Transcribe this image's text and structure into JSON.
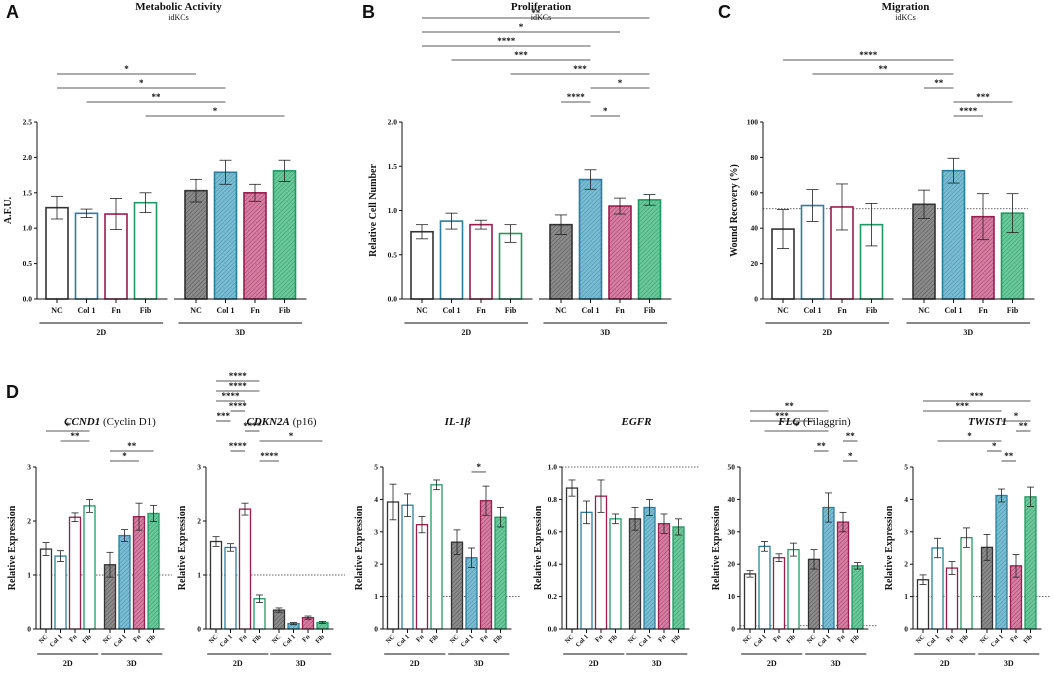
{
  "panel_letters": [
    "A",
    "B",
    "C",
    "D"
  ],
  "colors": {
    "nc": "#333333",
    "col1": "#2a7f9e",
    "fn": "#9a1d4f",
    "fib": "#1f9a63",
    "nc_fill": "#888888",
    "col1_fill": "#6fb3cc",
    "fn_fill": "#c9668f",
    "fib_fill": "#5fbf92"
  },
  "chart_data": [
    {
      "id": "A",
      "type": "bar",
      "title": "Metabolic Activity",
      "subtitle": "idKCs",
      "ylabel": "A.F.U.",
      "ylim": [
        0,
        2.5
      ],
      "yticks": [
        "0.0",
        "0.5",
        "1.0",
        "1.5",
        "2.0",
        "2.5"
      ],
      "categories": [
        "NC",
        "Col 1",
        "Fn",
        "Fib",
        "NC",
        "Col 1",
        "Fn",
        "Fib"
      ],
      "groups": [
        "2D",
        "3D"
      ],
      "values": [
        1.29,
        1.21,
        1.2,
        1.36,
        1.53,
        1.79,
        1.5,
        1.81
      ],
      "errors": [
        0.16,
        0.06,
        0.22,
        0.14,
        0.16,
        0.17,
        0.12,
        0.15
      ],
      "significance": [
        {
          "from": 0,
          "to": 4,
          "label": "*"
        },
        {
          "from": 0,
          "to": 5,
          "label": "*"
        },
        {
          "from": 1,
          "to": 5,
          "label": "**"
        },
        {
          "from": 3,
          "to": 7,
          "label": "*"
        }
      ]
    },
    {
      "id": "B",
      "type": "bar",
      "title": "Proliferation",
      "subtitle": "idKCs",
      "ylabel": "Relative Cell Number",
      "ylim": [
        0,
        2.0
      ],
      "yticks": [
        "0.0",
        "0.5",
        "1.0",
        "1.5",
        "2.0"
      ],
      "categories": [
        "NC",
        "Col 1",
        "Fn",
        "Fib",
        "NC",
        "Col 1",
        "Fn",
        "Fib"
      ],
      "groups": [
        "2D",
        "3D"
      ],
      "values": [
        0.76,
        0.88,
        0.84,
        0.74,
        0.84,
        1.35,
        1.05,
        1.12
      ],
      "errors": [
        0.08,
        0.09,
        0.05,
        0.1,
        0.11,
        0.11,
        0.09,
        0.06
      ],
      "significance": [
        {
          "from": 0,
          "to": 7,
          "label": "**"
        },
        {
          "from": 0,
          "to": 6,
          "label": "*"
        },
        {
          "from": 0,
          "to": 5,
          "label": "****"
        },
        {
          "from": 1,
          "to": 5,
          "label": "***"
        },
        {
          "from": 3,
          "to": 7,
          "label": "***"
        },
        {
          "from": 5,
          "to": 7,
          "label": "*"
        },
        {
          "from": 4,
          "to": 5,
          "label": "****"
        },
        {
          "from": 5,
          "to": 6,
          "label": "*"
        }
      ]
    },
    {
      "id": "C",
      "type": "bar",
      "title": "Migration",
      "subtitle": "idKCs",
      "ylabel": "Wound Recovery (%)",
      "ylim": [
        0,
        100
      ],
      "yticks": [
        "0",
        "20",
        "40",
        "60",
        "80",
        "100"
      ],
      "reference": 51,
      "categories": [
        "NC",
        "Col 1",
        "Fn",
        "Fib",
        "NC",
        "Col 1",
        "Fn",
        "Fib"
      ],
      "groups": [
        "2D",
        "3D"
      ],
      "values": [
        39.5,
        52.8,
        52.0,
        42.0,
        53.5,
        72.5,
        46.5,
        48.5
      ],
      "errors": [
        11,
        9,
        13,
        12,
        8,
        7,
        13,
        11
      ],
      "significance": [
        {
          "from": 0,
          "to": 5,
          "label": "****"
        },
        {
          "from": 1,
          "to": 5,
          "label": "**"
        },
        {
          "from": 4,
          "to": 5,
          "label": "**"
        },
        {
          "from": 5,
          "to": 7,
          "label": "***"
        },
        {
          "from": 5,
          "to": 6,
          "label": "****"
        }
      ]
    },
    {
      "id": "D1",
      "type": "bar",
      "gene": "CCND1",
      "gene_note": "(Cyclin D1)",
      "ylabel": "Relative Expression",
      "ylim": [
        0,
        3
      ],
      "yticks": [
        "0",
        "1",
        "2",
        "3"
      ],
      "reference": 1,
      "categories": [
        "NC",
        "Col 1",
        "Fn",
        "Fib",
        "NC",
        "Col 1",
        "Fn",
        "Fib"
      ],
      "groups": [
        "2D",
        "3D"
      ],
      "values": [
        1.48,
        1.35,
        2.07,
        2.28,
        1.19,
        1.73,
        2.08,
        2.14
      ],
      "errors": [
        0.12,
        0.1,
        0.08,
        0.12,
        0.23,
        0.11,
        0.25,
        0.15
      ],
      "significance": [
        {
          "from": 0,
          "to": 3,
          "label": "*"
        },
        {
          "from": 1,
          "to": 3,
          "label": "**"
        },
        {
          "from": 4,
          "to": 7,
          "label": "**"
        },
        {
          "from": 4,
          "to": 6,
          "label": "*"
        }
      ]
    },
    {
      "id": "D2",
      "type": "bar",
      "gene": "CDKN2A",
      "gene_note": "(p16)",
      "ylabel": "Relative Expression",
      "ylim": [
        0,
        3
      ],
      "yticks": [
        "0",
        "1",
        "2",
        "3"
      ],
      "reference": 1,
      "categories": [
        "NC",
        "Col 1",
        "Fn",
        "Fib",
        "NC",
        "Col 1",
        "Fn",
        "Fib"
      ],
      "groups": [
        "2D",
        "3D"
      ],
      "values": [
        1.62,
        1.51,
        2.22,
        0.56,
        0.35,
        0.1,
        0.21,
        0.12
      ],
      "errors": [
        0.09,
        0.07,
        0.11,
        0.07,
        0.04,
        0.02,
        0.03,
        0.02
      ],
      "significance": [
        {
          "from": 0,
          "to": 3,
          "label": "****"
        },
        {
          "from": 0,
          "to": 3,
          "label": "****"
        },
        {
          "from": 0,
          "to": 2,
          "label": "****"
        },
        {
          "from": 1,
          "to": 2,
          "label": "****"
        },
        {
          "from": 0,
          "to": 1,
          "label": "***"
        },
        {
          "from": 2,
          "to": 3,
          "label": "****"
        },
        {
          "from": 3,
          "to": 7,
          "label": "*"
        },
        {
          "from": 1,
          "to": 2,
          "label": "****"
        },
        {
          "from": 3,
          "to": 4,
          "label": "****"
        }
      ]
    },
    {
      "id": "D3",
      "type": "bar",
      "gene": "IL-1β",
      "gene_note": "",
      "ylabel": "Relative Expression",
      "ylim": [
        0,
        5
      ],
      "yticks": [
        "0",
        "1",
        "2",
        "3",
        "4",
        "5"
      ],
      "reference": 1,
      "categories": [
        "NC",
        "Col 1",
        "Fn",
        "Fib",
        "NC",
        "Col 1",
        "Fn",
        "Fib"
      ],
      "groups": [
        "2D",
        "3D"
      ],
      "values": [
        3.92,
        3.82,
        3.22,
        4.45,
        2.68,
        2.2,
        3.96,
        3.45
      ],
      "errors": [
        0.55,
        0.35,
        0.25,
        0.15,
        0.38,
        0.3,
        0.45,
        0.3
      ],
      "significance": [
        {
          "from": 5,
          "to": 6,
          "label": "*"
        }
      ]
    },
    {
      "id": "D4",
      "type": "bar",
      "gene": "EGFR",
      "gene_note": "",
      "ylabel": "Relative Expression",
      "ylim": [
        0,
        1.0
      ],
      "yticks": [
        "0.0",
        "0.2",
        "0.4",
        "0.6",
        "0.8",
        "1.0"
      ],
      "reference": 1,
      "categories": [
        "NC",
        "Col 1",
        "Fn",
        "Fib",
        "NC",
        "Col 1",
        "Fn",
        "Fib"
      ],
      "groups": [
        "2D",
        "3D"
      ],
      "values": [
        0.87,
        0.72,
        0.82,
        0.68,
        0.68,
        0.75,
        0.65,
        0.63
      ],
      "errors": [
        0.05,
        0.07,
        0.1,
        0.03,
        0.07,
        0.05,
        0.06,
        0.05
      ],
      "significance": []
    },
    {
      "id": "D5",
      "type": "bar",
      "gene": "FLG",
      "gene_note": "(Filaggrin)",
      "ylabel": "Relative Expression",
      "ylim": [
        0,
        50
      ],
      "yticks": [
        "0",
        "10",
        "20",
        "30",
        "40",
        "50"
      ],
      "reference": 1,
      "categories": [
        "NC",
        "Col 1",
        "Fn",
        "Fib",
        "NC",
        "Col 1",
        "Fn",
        "Fib"
      ],
      "groups": [
        "2D",
        "3D"
      ],
      "values": [
        17,
        25.5,
        22,
        24.5,
        21.5,
        37.5,
        33,
        19.5
      ],
      "errors": [
        1,
        1.5,
        1.2,
        2,
        3,
        4.5,
        3,
        1
      ],
      "significance": [
        {
          "from": 0,
          "to": 5,
          "label": "**"
        },
        {
          "from": 0,
          "to": 4,
          "label": "***"
        },
        {
          "from": 1,
          "to": 5,
          "label": "*"
        },
        {
          "from": 6,
          "to": 7,
          "label": "**"
        },
        {
          "from": 4,
          "to": 5,
          "label": "**"
        },
        {
          "from": 6,
          "to": 7,
          "label": "*"
        }
      ]
    },
    {
      "id": "D6",
      "type": "bar",
      "gene": "TWIST1",
      "gene_note": "",
      "ylabel": "Relative Expression",
      "ylim": [
        0,
        5
      ],
      "yticks": [
        "0",
        "1",
        "2",
        "3",
        "4",
        "5"
      ],
      "reference": 1,
      "categories": [
        "NC",
        "Col 1",
        "Fn",
        "Fib",
        "NC",
        "Col 1",
        "Fn",
        "Fib"
      ],
      "groups": [
        "2D",
        "3D"
      ],
      "values": [
        1.52,
        2.5,
        1.88,
        2.82,
        2.52,
        4.12,
        1.95,
        4.08
      ],
      "errors": [
        0.15,
        0.3,
        0.2,
        0.3,
        0.4,
        0.2,
        0.35,
        0.3
      ],
      "significance": [
        {
          "from": 0,
          "to": 7,
          "label": "***"
        },
        {
          "from": 0,
          "to": 5,
          "label": "***"
        },
        {
          "from": 5,
          "to": 7,
          "label": "*"
        },
        {
          "from": 6,
          "to": 7,
          "label": "**"
        },
        {
          "from": 1,
          "to": 5,
          "label": "*"
        },
        {
          "from": 4,
          "to": 5,
          "label": "*"
        },
        {
          "from": 5,
          "to": 6,
          "label": "**"
        }
      ]
    }
  ]
}
